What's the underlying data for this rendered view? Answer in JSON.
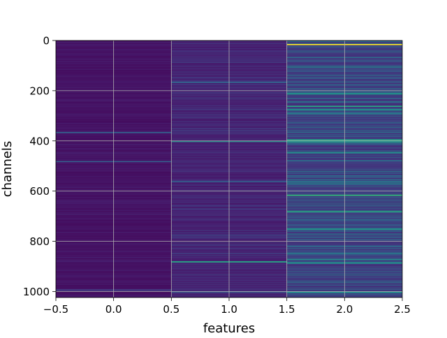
{
  "chart_data": {
    "type": "heatmap",
    "title": "",
    "xlabel": "features",
    "ylabel": "channels",
    "xlim": [
      -0.5,
      2.5
    ],
    "ylim": [
      1024,
      0
    ],
    "y_inverted": true,
    "x_ticks": [
      "−0.5",
      "0.0",
      "0.5",
      "1.0",
      "1.5",
      "2.0",
      "2.5"
    ],
    "x_tick_values": [
      -0.5,
      0.0,
      0.5,
      1.0,
      1.5,
      2.0,
      2.5
    ],
    "y_ticks": [
      "0",
      "200",
      "400",
      "600",
      "800",
      "1000"
    ],
    "y_tick_values": [
      0,
      200,
      400,
      600,
      800,
      1000
    ],
    "grid": true,
    "colormap": "viridis",
    "columns": [
      {
        "feature": 0,
        "base_value": 0.04,
        "noise_amplitude": 0.06,
        "highlight_rows": [
          {
            "channel": 365,
            "value": 0.3
          },
          {
            "channel": 480,
            "value": 0.3
          },
          {
            "channel": 993,
            "value": 0.2
          }
        ]
      },
      {
        "feature": 1,
        "base_value": 0.08,
        "noise_amplitude": 0.12,
        "highlight_rows": [
          {
            "channel": 165,
            "value": 0.3
          },
          {
            "channel": 400,
            "value": 0.5
          },
          {
            "channel": 560,
            "value": 0.3
          },
          {
            "channel": 880,
            "value": 0.6
          },
          {
            "channel": 1000,
            "value": 0.3
          }
        ]
      },
      {
        "feature": 2,
        "base_value": 0.15,
        "noise_amplitude": 0.3,
        "highlight_rows": [
          {
            "channel": 14,
            "value": 1.0
          },
          {
            "channel": 210,
            "value": 0.55
          },
          {
            "channel": 260,
            "value": 0.6
          },
          {
            "channel": 275,
            "value": 0.5
          },
          {
            "channel": 290,
            "value": 0.45
          },
          {
            "channel": 395,
            "value": 0.6
          },
          {
            "channel": 402,
            "value": 0.55
          },
          {
            "channel": 445,
            "value": 0.5
          },
          {
            "channel": 560,
            "value": 0.4
          },
          {
            "channel": 615,
            "value": 0.65
          },
          {
            "channel": 680,
            "value": 0.6
          },
          {
            "channel": 750,
            "value": 0.55
          },
          {
            "channel": 870,
            "value": 0.5
          },
          {
            "channel": 885,
            "value": 0.5
          },
          {
            "channel": 1000,
            "value": 0.5
          }
        ]
      }
    ]
  }
}
